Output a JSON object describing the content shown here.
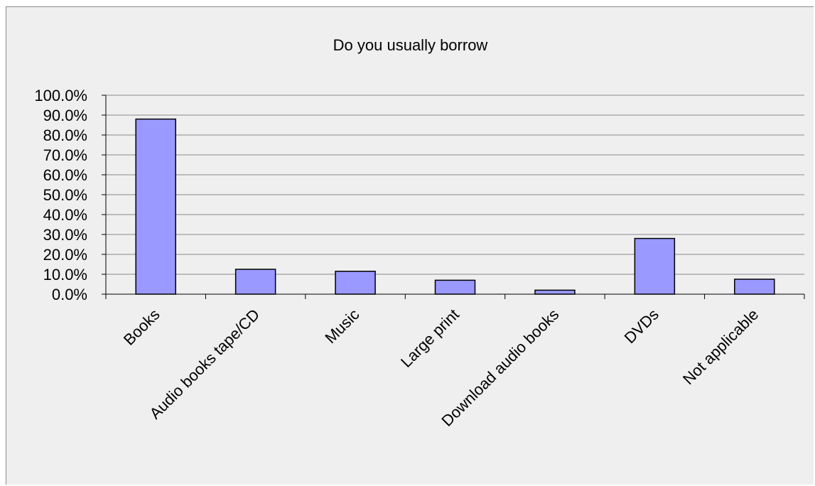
{
  "chart_data": {
    "type": "bar",
    "title": "Do you usually borrow",
    "xlabel": "",
    "ylabel": "",
    "categories": [
      "Books",
      "Audio books tape/CD",
      "Music",
      "Large print",
      "Download audio books",
      "DVDs",
      "Not applicable"
    ],
    "values": [
      88.0,
      12.5,
      11.5,
      7.0,
      2.0,
      28.0,
      7.5
    ],
    "ylim": [
      0,
      100
    ],
    "yticks": [
      "0.0%",
      "10.0%",
      "20.0%",
      "30.0%",
      "40.0%",
      "50.0%",
      "60.0%",
      "70.0%",
      "80.0%",
      "90.0%",
      "100.0%"
    ],
    "grid": true,
    "legend": "none",
    "colors": {
      "bar_fill": "#9999ff",
      "bar_stroke": "#000000",
      "gridline": "#8a8a8a",
      "background": "#efefef"
    }
  }
}
